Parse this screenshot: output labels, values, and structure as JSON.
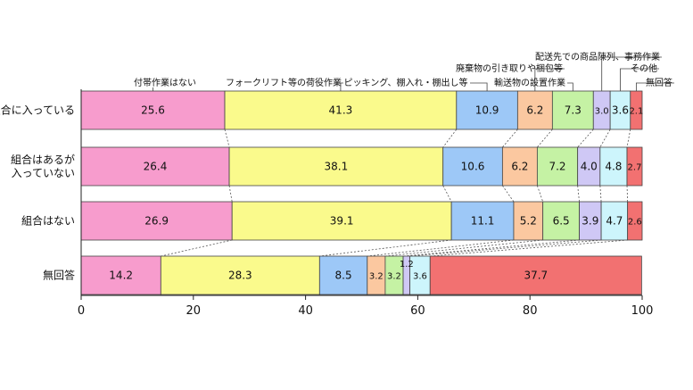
{
  "chart_data": {
    "type": "bar",
    "orientation": "horizontal-stacked",
    "categories": [
      "組合に入っている",
      "組合はあるが\n入っていない",
      "組合はない",
      "無回答"
    ],
    "series": [
      {
        "name": "付帯作業はない",
        "color": "#f79ccd",
        "values": [
          25.6,
          26.4,
          26.9,
          14.2
        ]
      },
      {
        "name": "フォークリフト等の荷役作業",
        "color": "#fafa8c",
        "values": [
          41.3,
          38.1,
          39.1,
          28.3
        ]
      },
      {
        "name": "ピッキング、棚入れ・棚出し等",
        "color": "#9dc8f7",
        "values": [
          10.9,
          10.6,
          11.1,
          8.5
        ]
      },
      {
        "name": "廃棄物の引き取りや梱包等",
        "color": "#fbc8a0",
        "values": [
          6.2,
          6.2,
          5.2,
          3.2
        ]
      },
      {
        "name": "輸送物の設置作業",
        "color": "#c5f2a4",
        "values": [
          7.3,
          7.2,
          6.5,
          3.2
        ]
      },
      {
        "name": "配送先での商品陳列、事務作業",
        "color": "#cfc8f5",
        "values": [
          3.0,
          4.0,
          3.9,
          1.2
        ]
      },
      {
        "name": "その他",
        "color": "#cdf5fc",
        "values": [
          3.6,
          4.8,
          4.7,
          3.6
        ]
      },
      {
        "name": "無回答",
        "color": "#f27171",
        "values": [
          2.1,
          2.7,
          2.6,
          37.7
        ]
      }
    ],
    "value_labels": [
      [
        "25.6",
        "41.3",
        "10.9",
        "6.2",
        "7.3",
        "3.0",
        "3.6",
        "2.1"
      ],
      [
        "26.4",
        "38.1",
        "10.6",
        "6.2",
        "7.2",
        "4.0",
        "4.8",
        "2.7"
      ],
      [
        "26.9",
        "39.1",
        "11.1",
        "5.2",
        "6.5",
        "3.9",
        "4.7",
        "2.6"
      ],
      [
        "14.2",
        "28.3",
        "8.5",
        "3.2",
        "3.2",
        "1.2",
        "3.6",
        "37.7"
      ]
    ],
    "xlim": [
      0,
      100
    ],
    "xticks": [
      0,
      20,
      40,
      60,
      80,
      100
    ],
    "legend_placement": "top (labels with leader lines above first bar)",
    "grid": false,
    "title": "",
    "xlabel": "",
    "ylabel": ""
  }
}
